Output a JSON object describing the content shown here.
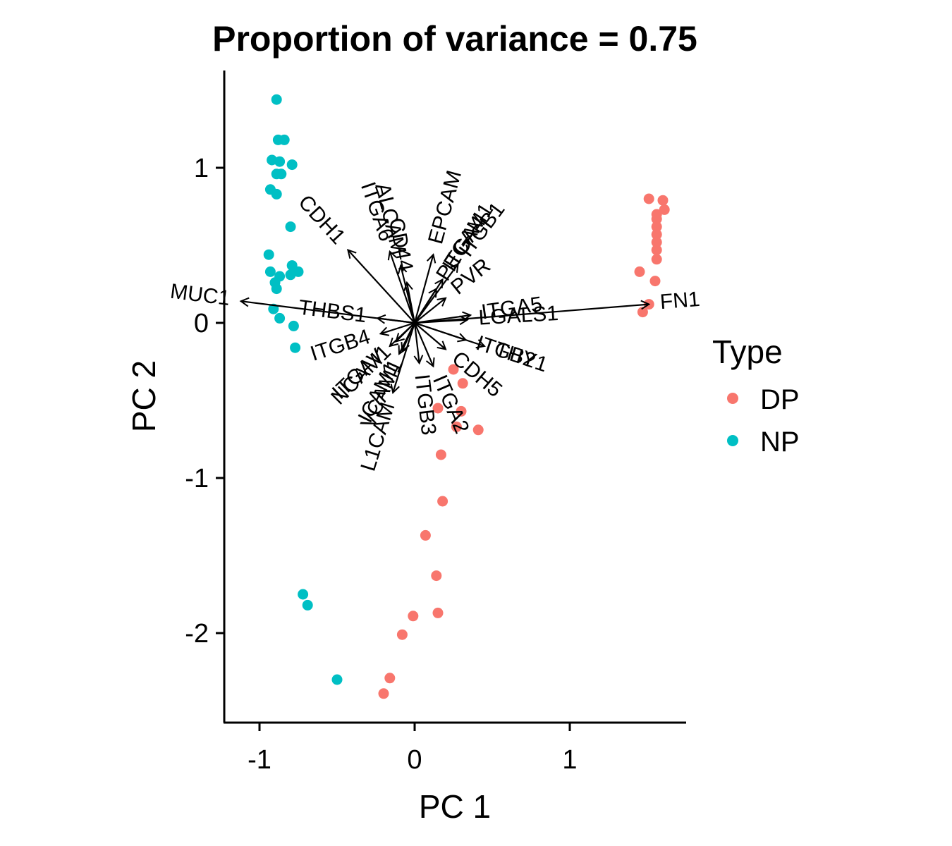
{
  "chart_data": {
    "type": "scatter",
    "title": "Proportion of variance = 0.75",
    "xlabel": "PC 1",
    "ylabel": "PC 2",
    "xlim": [
      -1.22,
      1.74
    ],
    "ylim": [
      -2.57,
      1.62
    ],
    "x_ticks": [
      -1,
      0,
      1
    ],
    "y_ticks": [
      -2,
      -1,
      0,
      1
    ],
    "x_tick_labels": [
      "-1",
      "0",
      "1"
    ],
    "y_tick_labels": [
      "-2",
      "-1",
      "0",
      "1"
    ],
    "grid": false,
    "legend": {
      "title": "Type",
      "position": "right",
      "entries": [
        {
          "label": "DP",
          "color": "#F8766D"
        },
        {
          "label": "NP",
          "color": "#00BFC4"
        }
      ]
    },
    "series": [
      {
        "name": "DP",
        "color": "#F8766D",
        "points": [
          [
            1.51,
            0.8
          ],
          [
            1.6,
            0.79
          ],
          [
            1.61,
            0.73
          ],
          [
            1.56,
            0.7
          ],
          [
            1.56,
            0.67
          ],
          [
            1.56,
            0.62
          ],
          [
            1.56,
            0.57
          ],
          [
            1.56,
            0.52
          ],
          [
            1.56,
            0.47
          ],
          [
            1.56,
            0.41
          ],
          [
            1.45,
            0.33
          ],
          [
            1.55,
            0.27
          ],
          [
            1.51,
            0.12
          ],
          [
            1.47,
            0.07
          ],
          [
            0.31,
            -0.39
          ],
          [
            0.25,
            -0.3
          ],
          [
            0.15,
            -0.55
          ],
          [
            0.3,
            -0.57
          ],
          [
            0.27,
            -0.67
          ],
          [
            0.41,
            -0.69
          ],
          [
            0.17,
            -0.85
          ],
          [
            0.18,
            -1.15
          ],
          [
            0.07,
            -1.37
          ],
          [
            0.14,
            -1.63
          ],
          [
            0.15,
            -1.87
          ],
          [
            -0.01,
            -1.89
          ],
          [
            -0.08,
            -2.01
          ],
          [
            -0.16,
            -2.29
          ],
          [
            -0.2,
            -2.39
          ]
        ]
      },
      {
        "name": "NP",
        "color": "#00BFC4",
        "points": [
          [
            -0.89,
            1.44
          ],
          [
            -0.88,
            1.18
          ],
          [
            -0.84,
            1.18
          ],
          [
            -0.92,
            1.05
          ],
          [
            -0.87,
            1.04
          ],
          [
            -0.79,
            1.02
          ],
          [
            -0.89,
            0.96
          ],
          [
            -0.86,
            0.96
          ],
          [
            -0.93,
            0.86
          ],
          [
            -0.89,
            0.83
          ],
          [
            -0.8,
            0.62
          ],
          [
            -0.94,
            0.44
          ],
          [
            -0.79,
            0.37
          ],
          [
            -0.75,
            0.33
          ],
          [
            -0.93,
            0.33
          ],
          [
            -0.87,
            0.3
          ],
          [
            -0.9,
            0.26
          ],
          [
            -0.89,
            0.22
          ],
          [
            -0.8,
            0.31
          ],
          [
            -0.91,
            0.09
          ],
          [
            -0.87,
            0.03
          ],
          [
            -0.78,
            -0.02
          ],
          [
            -0.77,
            -0.16
          ],
          [
            -0.72,
            -1.75
          ],
          [
            -0.69,
            -1.82
          ],
          [
            -0.5,
            -2.3
          ]
        ]
      }
    ],
    "loadings": [
      {
        "label": "FN1",
        "x": 1.51,
        "y": 0.12
      },
      {
        "label": "ITGA5",
        "x": 0.36,
        "y": 0.05
      },
      {
        "label": "LGALS1",
        "x": 0.34,
        "y": 0.02
      },
      {
        "label": "THY1",
        "x": 0.45,
        "y": -0.15
      },
      {
        "label": "ITGB2",
        "x": 0.33,
        "y": -0.11
      },
      {
        "label": "CDH5",
        "x": 0.2,
        "y": -0.17
      },
      {
        "label": "ITGA2",
        "x": 0.12,
        "y": -0.28
      },
      {
        "label": "ITGB3",
        "x": 0.03,
        "y": -0.26
      },
      {
        "label": "L1CAM",
        "x": -0.14,
        "y": -0.45
      },
      {
        "label": "ICAM1",
        "x": -0.1,
        "y": -0.2
      },
      {
        "label": "ITGB4",
        "x": -0.22,
        "y": -0.07
      },
      {
        "label": "ITGAV",
        "x": -0.16,
        "y": -0.15
      },
      {
        "label": "NCAM1",
        "x": -0.12,
        "y": -0.12
      },
      {
        "label": "VCAM1",
        "x": -0.08,
        "y": -0.18
      },
      {
        "label": "THBS1",
        "x": -0.24,
        "y": 0.03
      },
      {
        "label": "MUC1",
        "x": -1.12,
        "y": 0.14
      },
      {
        "label": "CDH1",
        "x": -0.43,
        "y": 0.47
      },
      {
        "label": "ITGA6",
        "x": -0.16,
        "y": 0.46
      },
      {
        "label": "ALCAM",
        "x": -0.09,
        "y": 0.37
      },
      {
        "label": "CD44",
        "x": -0.05,
        "y": 0.26
      },
      {
        "label": "EPCAM",
        "x": 0.12,
        "y": 0.44
      },
      {
        "label": "ITGB1",
        "x": 0.28,
        "y": 0.38
      },
      {
        "label": "ITGA4",
        "x": 0.18,
        "y": 0.28
      },
      {
        "label": "PECAM1",
        "x": 0.14,
        "y": 0.22
      },
      {
        "label": "PVR",
        "x": 0.2,
        "y": 0.16
      }
    ]
  }
}
